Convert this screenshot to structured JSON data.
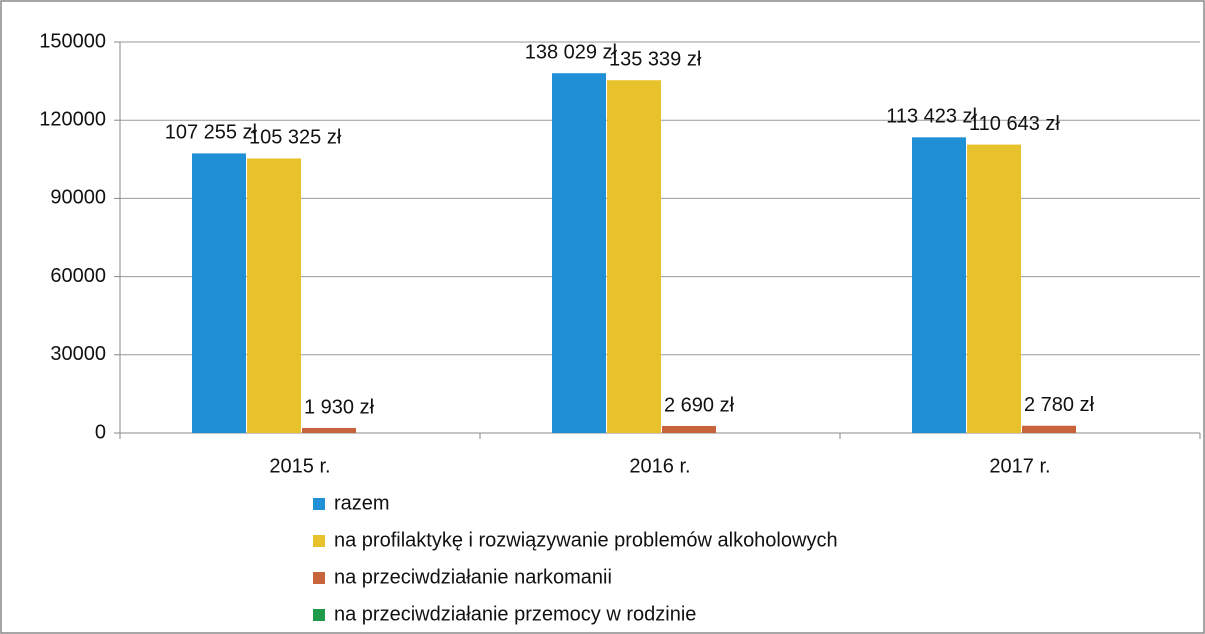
{
  "chart_data": {
    "type": "bar",
    "categories": [
      "2015 r.",
      "2016 r.",
      "2017 r."
    ],
    "series": [
      {
        "name": "razem",
        "color": "#1f8fd6",
        "values": [
          107255,
          138029,
          113423
        ],
        "value_labels": [
          "107 255 zł",
          "138 029 zł",
          "113 423 zł"
        ]
      },
      {
        "name": "na profilaktykę i rozwiązywanie problemów alkoholowych",
        "color": "#e8c22c",
        "values": [
          105325,
          135339,
          110643
        ],
        "value_labels": [
          "105 325 zł",
          "135 339 zł",
          "110 643 zł"
        ]
      },
      {
        "name": "na przeciwdziałanie narkomanii",
        "color": "#c8643c",
        "values": [
          1930,
          2690,
          2780
        ],
        "value_labels": [
          "1 930 zł",
          "2 690 zł",
          "2 780 zł"
        ]
      },
      {
        "name": "na przeciwdziałanie przemocy w rodzinie",
        "color": "#1e9a4a",
        "values": [
          null,
          null,
          null
        ]
      }
    ],
    "ylim": [
      0,
      150000
    ],
    "yticks": [
      0,
      30000,
      60000,
      90000,
      120000,
      150000
    ],
    "grid": true,
    "legend": "bottom"
  }
}
